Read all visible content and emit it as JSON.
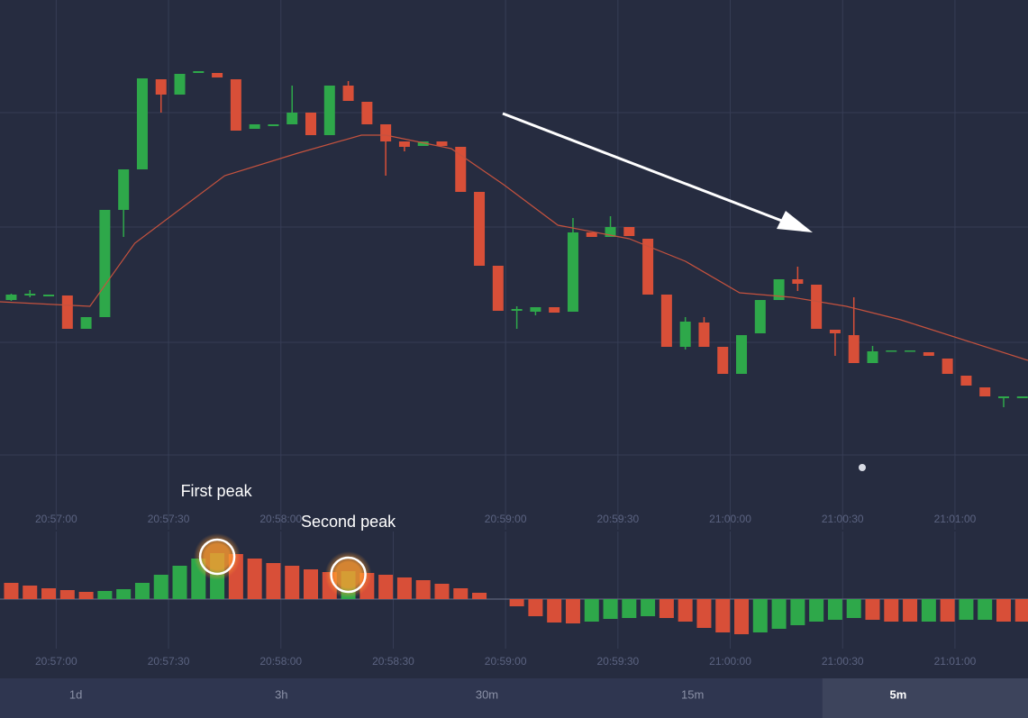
{
  "chart_data": [
    {
      "type": "candlestick",
      "color_up": "#2ea84a",
      "color_down": "#d84f38",
      "xlim": [
        -0.6,
        54.3
      ],
      "ylim": [
        0,
        560
      ],
      "xticks": [
        {
          "value": 2.4,
          "label": "20:57:00"
        },
        {
          "value": 8.4,
          "label": "20:57:30"
        },
        {
          "value": 14.4,
          "label": "20:58:00"
        },
        {
          "value": 26.4,
          "label": "20:59:00"
        },
        {
          "value": 32.4,
          "label": "20:59:30"
        },
        {
          "value": 38.4,
          "label": "21:00:00"
        },
        {
          "value": 44.4,
          "label": "21:00:30"
        },
        {
          "value": 50.4,
          "label": "21:01:00"
        }
      ],
      "open": [
        227,
        232,
        231,
        232,
        195,
        208,
        327,
        372,
        472,
        455,
        479,
        479,
        472,
        417,
        420,
        422,
        435,
        410,
        465,
        447,
        422,
        403,
        398,
        403,
        397,
        347,
        265,
        215,
        214,
        219,
        214,
        302,
        297,
        308,
        295,
        233,
        175,
        202,
        175,
        145,
        190,
        227,
        250,
        244,
        194,
        188,
        157,
        170,
        170,
        169,
        162,
        143,
        130,
        118,
        118
      ],
      "high": [
        234,
        238,
        233,
        232,
        208,
        327,
        372,
        473,
        472,
        478,
        481,
        479,
        472,
        422,
        422,
        465,
        435,
        465,
        470,
        447,
        422,
        403,
        403,
        403,
        397,
        347,
        265,
        220,
        219,
        219,
        318,
        302,
        320,
        308,
        295,
        233,
        208,
        208,
        175,
        188,
        227,
        250,
        264,
        244,
        194,
        230,
        176,
        171,
        171,
        169,
        162,
        143,
        130,
        120,
        120
      ],
      "low": [
        226,
        230,
        231,
        195,
        195,
        208,
        297,
        372,
        435,
        455,
        479,
        474,
        415,
        417,
        420,
        422,
        410,
        410,
        448,
        422,
        365,
        392,
        398,
        398,
        347,
        265,
        215,
        195,
        210,
        213,
        214,
        297,
        297,
        298,
        233,
        175,
        172,
        175,
        145,
        145,
        190,
        227,
        237,
        195,
        165,
        157,
        157,
        170,
        170,
        165,
        145,
        132,
        120,
        108,
        118
      ],
      "close": [
        233,
        234,
        233,
        195,
        208,
        327,
        372,
        473,
        455,
        478,
        481,
        474,
        415,
        422,
        422,
        435,
        410,
        465,
        448,
        422,
        403,
        397,
        403,
        398,
        347,
        265,
        215,
        217,
        219,
        213,
        302,
        297,
        308,
        298,
        233,
        175,
        203,
        175,
        145,
        188,
        227,
        250,
        245,
        195,
        190,
        157,
        170,
        171,
        171,
        165,
        145,
        132,
        120,
        120,
        120
      ],
      "ma": {
        "color": "#c5523e",
        "x": [
          -0.6,
          4.2,
          6.6,
          11.4,
          15.3,
          18.7,
          20,
          23.5,
          26.3,
          29.2,
          33,
          36,
          38.9,
          41.7,
          44.6,
          47.5,
          54.3
        ],
        "values": [
          225,
          220,
          290,
          365,
          390,
          410,
          410,
          395,
          355,
          310,
          295,
          270,
          235,
          230,
          220,
          205,
          160
        ]
      }
    },
    {
      "type": "bar",
      "xlim": [
        -0.6,
        54.3
      ],
      "ylim": [
        -85,
        75
      ],
      "xticks": [
        {
          "value": 2.4,
          "label": "20:57:00"
        },
        {
          "value": 8.4,
          "label": "20:57:30"
        },
        {
          "value": 14.4,
          "label": "20:58:00"
        },
        {
          "value": 20.4,
          "label": "20:58:30"
        },
        {
          "value": 26.4,
          "label": "20:59:00"
        },
        {
          "value": 32.4,
          "label": "20:59:30"
        },
        {
          "value": 38.4,
          "label": "21:00:00"
        },
        {
          "value": 44.4,
          "label": "21:00:30"
        },
        {
          "value": 50.4,
          "label": "21:01:00"
        }
      ],
      "values": [
        18,
        15,
        12,
        10,
        8,
        9,
        11,
        18,
        27,
        37,
        45,
        51,
        50,
        45,
        40,
        37,
        33,
        30,
        31,
        29,
        27,
        24,
        21,
        17,
        12,
        7,
        0,
        -8,
        -19,
        -26,
        -27,
        -25,
        -22,
        -21,
        -19,
        -21,
        -25,
        -32,
        -37,
        -39,
        -37,
        -33,
        -29,
        -25,
        -23,
        -21,
        -23,
        -25,
        -25,
        -25,
        -25,
        -23,
        -23,
        -25,
        -25
      ],
      "colors": [
        "#d84f38",
        "#d84f38",
        "#d84f38",
        "#d84f38",
        "#d84f38",
        "#2ea84a",
        "#2ea84a",
        "#2ea84a",
        "#2ea84a",
        "#2ea84a",
        "#2ea84a",
        "#2ea84a",
        "#d84f38",
        "#d84f38",
        "#d84f38",
        "#d84f38",
        "#d84f38",
        "#d84f38",
        "#2ea84a",
        "#d84f38",
        "#d84f38",
        "#d84f38",
        "#d84f38",
        "#d84f38",
        "#d84f38",
        "#d84f38",
        "#d84f38",
        "#d84f38",
        "#d84f38",
        "#d84f38",
        "#d84f38",
        "#2ea84a",
        "#2ea84a",
        "#2ea84a",
        "#2ea84a",
        "#d84f38",
        "#d84f38",
        "#d84f38",
        "#d84f38",
        "#d84f38",
        "#2ea84a",
        "#2ea84a",
        "#2ea84a",
        "#2ea84a",
        "#2ea84a",
        "#2ea84a",
        "#d84f38",
        "#d84f38",
        "#d84f38",
        "#2ea84a",
        "#d84f38",
        "#2ea84a",
        "#2ea84a",
        "#d84f38",
        "#d84f38"
      ],
      "annotations": [
        {
          "text": "First peak",
          "index": 11
        },
        {
          "text": "Second peak",
          "index": 18
        }
      ]
    }
  ],
  "timeframes": [
    "1d",
    "3h",
    "30m",
    "15m",
    "5m"
  ],
  "selected": "5m"
}
